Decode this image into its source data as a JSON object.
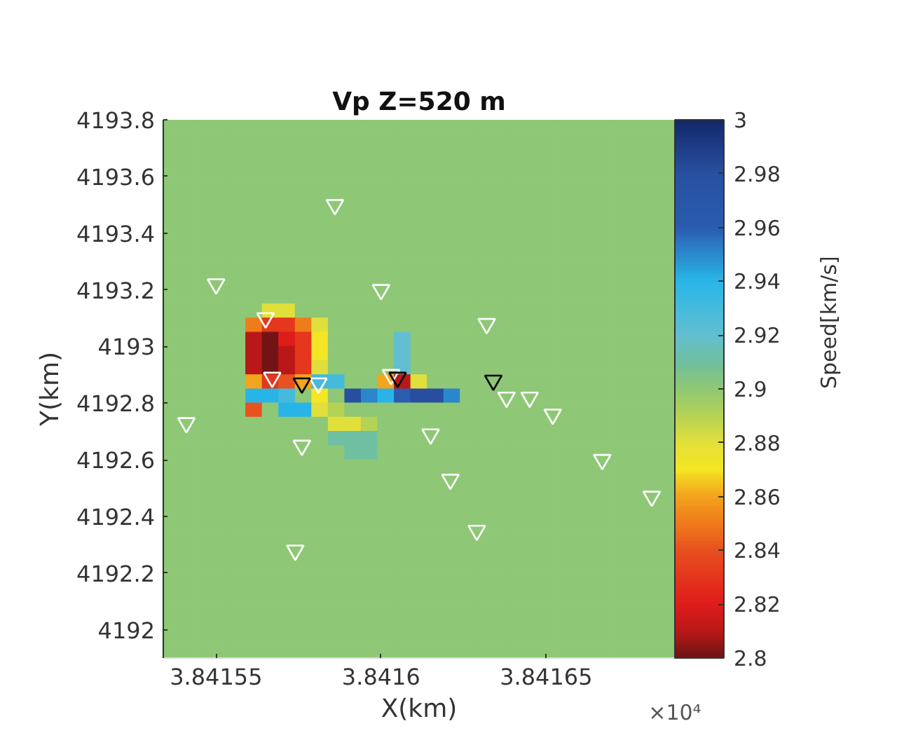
{
  "chart_data": {
    "type": "heatmap",
    "title": "Vp Z=520 m",
    "xlabel": "X(km)",
    "ylabel": "Y(km)",
    "clabel": "Speed[km/s]",
    "annotations": [
      "×10⁴"
    ],
    "x": [
      3.8415365,
      3.8415415,
      3.8415465,
      3.8415515,
      3.8415565,
      3.8415615,
      3.8415665,
      3.8415715,
      3.8415765,
      3.8415815,
      3.8415865,
      3.8415915,
      3.8415965,
      3.8416015,
      3.8416065,
      3.8416115,
      3.8416165,
      3.8416215,
      3.8416265,
      3.8416315,
      3.8416365,
      3.8416415,
      3.8416465,
      3.8416515,
      3.8416565,
      3.8416615,
      3.8416665,
      3.8416715,
      3.8416765,
      3.8416815,
      3.8416865
    ],
    "y": [
      4193.775,
      4193.725,
      4193.675,
      4193.625,
      4193.575,
      4193.525,
      4193.475,
      4193.425,
      4193.375,
      4193.325,
      4193.275,
      4193.225,
      4193.175,
      4193.125,
      4193.075,
      4193.025,
      4192.975,
      4192.925,
      4192.875,
      4192.825,
      4192.775,
      4192.725,
      4192.675,
      4192.625,
      4192.575,
      4192.525,
      4192.475,
      4192.425,
      4192.375,
      4192.325,
      4192.275,
      4192.225,
      4192.175,
      4192.125,
      4192.075,
      4192.025,
      4191.975,
      4191.925
    ],
    "cells": [
      [
        2.9,
        2.9,
        2.9,
        2.9,
        2.9,
        2.9,
        2.9,
        2.9,
        2.9,
        2.9,
        2.9,
        2.9,
        2.9,
        2.9,
        2.9,
        2.9,
        2.9,
        2.9,
        2.9,
        2.9,
        2.9,
        2.9,
        2.9,
        2.9,
        2.9,
        2.9,
        2.9,
        2.9,
        2.9,
        2.9,
        2.9
      ],
      [
        2.9,
        2.9,
        2.9,
        2.9,
        2.9,
        2.9,
        2.9,
        2.9,
        2.9,
        2.9,
        2.9,
        2.9,
        2.9,
        2.9,
        2.9,
        2.9,
        2.9,
        2.9,
        2.9,
        2.9,
        2.9,
        2.9,
        2.9,
        2.9,
        2.9,
        2.9,
        2.9,
        2.9,
        2.9,
        2.9,
        2.9
      ],
      [
        2.9,
        2.9,
        2.9,
        2.9,
        2.9,
        2.9,
        2.9,
        2.9,
        2.9,
        2.9,
        2.9,
        2.9,
        2.9,
        2.9,
        2.9,
        2.9,
        2.9,
        2.9,
        2.9,
        2.9,
        2.9,
        2.9,
        2.9,
        2.9,
        2.9,
        2.9,
        2.9,
        2.9,
        2.9,
        2.9,
        2.9
      ],
      [
        2.9,
        2.9,
        2.9,
        2.9,
        2.9,
        2.9,
        2.9,
        2.9,
        2.9,
        2.9,
        2.9,
        2.9,
        2.9,
        2.9,
        2.9,
        2.9,
        2.9,
        2.9,
        2.9,
        2.9,
        2.9,
        2.9,
        2.9,
        2.9,
        2.9,
        2.9,
        2.9,
        2.9,
        2.9,
        2.9,
        2.9
      ],
      [
        2.9,
        2.9,
        2.9,
        2.9,
        2.9,
        2.9,
        2.9,
        2.9,
        2.9,
        2.9,
        2.9,
        2.9,
        2.9,
        2.9,
        2.9,
        2.9,
        2.9,
        2.9,
        2.9,
        2.9,
        2.9,
        2.9,
        2.9,
        2.9,
        2.9,
        2.9,
        2.9,
        2.9,
        2.9,
        2.9,
        2.9
      ],
      [
        2.9,
        2.9,
        2.9,
        2.9,
        2.9,
        2.9,
        2.9,
        2.9,
        2.9,
        2.9,
        2.9,
        2.9,
        2.9,
        2.9,
        2.9,
        2.9,
        2.9,
        2.9,
        2.9,
        2.9,
        2.9,
        2.9,
        2.9,
        2.9,
        2.9,
        2.9,
        2.9,
        2.9,
        2.9,
        2.9,
        2.9
      ],
      [
        2.9,
        2.9,
        2.9,
        2.9,
        2.9,
        2.9,
        2.9,
        2.9,
        2.9,
        2.9,
        2.9,
        2.9,
        2.9,
        2.9,
        2.9,
        2.9,
        2.9,
        2.9,
        2.9,
        2.9,
        2.9,
        2.9,
        2.9,
        2.9,
        2.9,
        2.9,
        2.9,
        2.9,
        2.9,
        2.9,
        2.9
      ],
      [
        2.9,
        2.9,
        2.9,
        2.9,
        2.9,
        2.9,
        2.9,
        2.9,
        2.9,
        2.9,
        2.9,
        2.9,
        2.9,
        2.9,
        2.9,
        2.9,
        2.9,
        2.9,
        2.9,
        2.9,
        2.9,
        2.9,
        2.9,
        2.9,
        2.9,
        2.9,
        2.9,
        2.9,
        2.9,
        2.9,
        2.9
      ],
      [
        2.9,
        2.9,
        2.9,
        2.9,
        2.9,
        2.9,
        2.9,
        2.9,
        2.9,
        2.9,
        2.9,
        2.9,
        2.9,
        2.9,
        2.9,
        2.9,
        2.9,
        2.9,
        2.9,
        2.9,
        2.9,
        2.9,
        2.9,
        2.9,
        2.9,
        2.9,
        2.9,
        2.9,
        2.9,
        2.9,
        2.9
      ],
      [
        2.9,
        2.9,
        2.9,
        2.9,
        2.9,
        2.9,
        2.9,
        2.9,
        2.9,
        2.9,
        2.9,
        2.9,
        2.9,
        2.9,
        2.9,
        2.9,
        2.9,
        2.9,
        2.9,
        2.9,
        2.9,
        2.9,
        2.9,
        2.9,
        2.9,
        2.9,
        2.9,
        2.9,
        2.9,
        2.9,
        2.9
      ],
      [
        2.9,
        2.9,
        2.9,
        2.9,
        2.9,
        2.9,
        2.9,
        2.9,
        2.9,
        2.9,
        2.9,
        2.9,
        2.9,
        2.9,
        2.9,
        2.9,
        2.9,
        2.9,
        2.9,
        2.9,
        2.9,
        2.9,
        2.9,
        2.9,
        2.9,
        2.9,
        2.9,
        2.9,
        2.9,
        2.9,
        2.9
      ],
      [
        2.9,
        2.9,
        2.9,
        2.9,
        2.9,
        2.9,
        2.9,
        2.9,
        2.9,
        2.9,
        2.9,
        2.9,
        2.9,
        2.9,
        2.9,
        2.9,
        2.9,
        2.9,
        2.9,
        2.9,
        2.9,
        2.9,
        2.9,
        2.9,
        2.9,
        2.9,
        2.9,
        2.9,
        2.9,
        2.9,
        2.9
      ],
      [
        2.9,
        2.9,
        2.9,
        2.9,
        2.9,
        2.9,
        2.9,
        2.9,
        2.9,
        2.9,
        2.9,
        2.9,
        2.9,
        2.9,
        2.9,
        2.9,
        2.9,
        2.9,
        2.9,
        2.9,
        2.9,
        2.9,
        2.9,
        2.9,
        2.9,
        2.9,
        2.9,
        2.9,
        2.9,
        2.9,
        2.9
      ],
      [
        2.9,
        2.9,
        2.9,
        2.9,
        2.9,
        2.9,
        2.88,
        2.88,
        2.9,
        2.9,
        2.9,
        2.9,
        2.9,
        2.9,
        2.9,
        2.9,
        2.9,
        2.9,
        2.9,
        2.9,
        2.9,
        2.9,
        2.9,
        2.9,
        2.9,
        2.9,
        2.9,
        2.9,
        2.9,
        2.9,
        2.9
      ],
      [
        2.9,
        2.9,
        2.9,
        2.9,
        2.9,
        2.85,
        2.83,
        2.83,
        2.85,
        2.88,
        2.9,
        2.9,
        2.9,
        2.9,
        2.9,
        2.9,
        2.9,
        2.9,
        2.9,
        2.9,
        2.9,
        2.9,
        2.9,
        2.9,
        2.9,
        2.9,
        2.9,
        2.9,
        2.9,
        2.9,
        2.9
      ],
      [
        2.9,
        2.9,
        2.9,
        2.9,
        2.9,
        2.81,
        2.8,
        2.82,
        2.83,
        2.87,
        2.9,
        2.9,
        2.9,
        2.9,
        2.92,
        2.9,
        2.9,
        2.9,
        2.9,
        2.9,
        2.9,
        2.9,
        2.9,
        2.9,
        2.9,
        2.9,
        2.9,
        2.9,
        2.9,
        2.9,
        2.9
      ],
      [
        2.9,
        2.9,
        2.9,
        2.9,
        2.9,
        2.81,
        2.8,
        2.81,
        2.83,
        2.87,
        2.9,
        2.9,
        2.9,
        2.9,
        2.92,
        2.9,
        2.9,
        2.9,
        2.9,
        2.9,
        2.9,
        2.9,
        2.9,
        2.9,
        2.9,
        2.9,
        2.9,
        2.9,
        2.9,
        2.9,
        2.9
      ],
      [
        2.9,
        2.9,
        2.9,
        2.9,
        2.9,
        2.81,
        2.8,
        2.81,
        2.83,
        2.88,
        2.9,
        2.9,
        2.9,
        2.9,
        2.92,
        2.9,
        2.9,
        2.9,
        2.9,
        2.9,
        2.9,
        2.9,
        2.9,
        2.9,
        2.9,
        2.9,
        2.9,
        2.9,
        2.9,
        2.9,
        2.9
      ],
      [
        2.9,
        2.9,
        2.9,
        2.9,
        2.9,
        2.86,
        2.83,
        2.84,
        2.86,
        2.93,
        2.93,
        2.9,
        2.9,
        2.86,
        2.81,
        2.88,
        2.9,
        2.9,
        2.9,
        2.9,
        2.9,
        2.9,
        2.9,
        2.9,
        2.9,
        2.9,
        2.9,
        2.9,
        2.9,
        2.9,
        2.9
      ],
      [
        2.9,
        2.9,
        2.9,
        2.9,
        2.9,
        2.94,
        2.94,
        2.93,
        2.9,
        2.87,
        2.9,
        2.98,
        2.95,
        2.94,
        2.96,
        2.98,
        2.98,
        2.95,
        2.9,
        2.9,
        2.9,
        2.9,
        2.9,
        2.9,
        2.9,
        2.9,
        2.9,
        2.9,
        2.9,
        2.9,
        2.9
      ],
      [
        2.9,
        2.9,
        2.9,
        2.9,
        2.9,
        2.84,
        2.9,
        2.94,
        2.94,
        2.88,
        2.89,
        2.9,
        2.9,
        2.9,
        2.9,
        2.9,
        2.9,
        2.9,
        2.9,
        2.9,
        2.9,
        2.9,
        2.9,
        2.9,
        2.9,
        2.9,
        2.9,
        2.9,
        2.9,
        2.9,
        2.9
      ],
      [
        2.9,
        2.9,
        2.9,
        2.9,
        2.9,
        2.9,
        2.9,
        2.9,
        2.9,
        2.9,
        2.88,
        2.88,
        2.89,
        2.9,
        2.9,
        2.9,
        2.9,
        2.9,
        2.9,
        2.9,
        2.9,
        2.9,
        2.9,
        2.9,
        2.9,
        2.9,
        2.9,
        2.9,
        2.9,
        2.9,
        2.9
      ],
      [
        2.9,
        2.9,
        2.9,
        2.9,
        2.9,
        2.9,
        2.9,
        2.9,
        2.9,
        2.9,
        2.91,
        2.91,
        2.91,
        2.9,
        2.9,
        2.9,
        2.9,
        2.9,
        2.9,
        2.9,
        2.9,
        2.9,
        2.9,
        2.9,
        2.9,
        2.9,
        2.9,
        2.9,
        2.9,
        2.9,
        2.9
      ],
      [
        2.9,
        2.9,
        2.9,
        2.9,
        2.9,
        2.9,
        2.9,
        2.9,
        2.9,
        2.9,
        2.9,
        2.91,
        2.91,
        2.9,
        2.9,
        2.9,
        2.9,
        2.9,
        2.9,
        2.9,
        2.9,
        2.9,
        2.9,
        2.9,
        2.9,
        2.9,
        2.9,
        2.9,
        2.9,
        2.9,
        2.9
      ],
      [
        2.9,
        2.9,
        2.9,
        2.9,
        2.9,
        2.9,
        2.9,
        2.9,
        2.9,
        2.9,
        2.9,
        2.9,
        2.9,
        2.9,
        2.9,
        2.9,
        2.9,
        2.9,
        2.9,
        2.9,
        2.9,
        2.9,
        2.9,
        2.9,
        2.9,
        2.9,
        2.9,
        2.9,
        2.9,
        2.9,
        2.9
      ],
      [
        2.9,
        2.9,
        2.9,
        2.9,
        2.9,
        2.9,
        2.9,
        2.9,
        2.9,
        2.9,
        2.9,
        2.9,
        2.9,
        2.9,
        2.9,
        2.9,
        2.9,
        2.9,
        2.9,
        2.9,
        2.9,
        2.9,
        2.9,
        2.9,
        2.9,
        2.9,
        2.9,
        2.9,
        2.9,
        2.9,
        2.9
      ],
      [
        2.9,
        2.9,
        2.9,
        2.9,
        2.9,
        2.9,
        2.9,
        2.9,
        2.9,
        2.9,
        2.9,
        2.9,
        2.9,
        2.9,
        2.9,
        2.9,
        2.9,
        2.9,
        2.9,
        2.9,
        2.9,
        2.9,
        2.9,
        2.9,
        2.9,
        2.9,
        2.9,
        2.9,
        2.9,
        2.9,
        2.9
      ],
      [
        2.9,
        2.9,
        2.9,
        2.9,
        2.9,
        2.9,
        2.9,
        2.9,
        2.9,
        2.9,
        2.9,
        2.9,
        2.9,
        2.9,
        2.9,
        2.9,
        2.9,
        2.9,
        2.9,
        2.9,
        2.9,
        2.9,
        2.9,
        2.9,
        2.9,
        2.9,
        2.9,
        2.9,
        2.9,
        2.9,
        2.9
      ],
      [
        2.9,
        2.9,
        2.9,
        2.9,
        2.9,
        2.9,
        2.9,
        2.9,
        2.9,
        2.9,
        2.9,
        2.9,
        2.9,
        2.9,
        2.9,
        2.9,
        2.9,
        2.9,
        2.9,
        2.9,
        2.9,
        2.9,
        2.9,
        2.9,
        2.9,
        2.9,
        2.9,
        2.9,
        2.9,
        2.9,
        2.9
      ],
      [
        2.9,
        2.9,
        2.9,
        2.9,
        2.9,
        2.9,
        2.9,
        2.9,
        2.9,
        2.9,
        2.9,
        2.9,
        2.9,
        2.9,
        2.9,
        2.9,
        2.9,
        2.9,
        2.9,
        2.9,
        2.9,
        2.9,
        2.9,
        2.9,
        2.9,
        2.9,
        2.9,
        2.9,
        2.9,
        2.9,
        2.9
      ],
      [
        2.9,
        2.9,
        2.9,
        2.9,
        2.9,
        2.9,
        2.9,
        2.9,
        2.9,
        2.9,
        2.9,
        2.9,
        2.9,
        2.9,
        2.9,
        2.9,
        2.9,
        2.9,
        2.9,
        2.9,
        2.9,
        2.9,
        2.9,
        2.9,
        2.9,
        2.9,
        2.9,
        2.9,
        2.9,
        2.9,
        2.9
      ],
      [
        2.9,
        2.9,
        2.9,
        2.9,
        2.9,
        2.9,
        2.9,
        2.9,
        2.9,
        2.9,
        2.9,
        2.9,
        2.9,
        2.9,
        2.9,
        2.9,
        2.9,
        2.9,
        2.9,
        2.9,
        2.9,
        2.9,
        2.9,
        2.9,
        2.9,
        2.9,
        2.9,
        2.9,
        2.9,
        2.9,
        2.9
      ],
      [
        2.9,
        2.9,
        2.9,
        2.9,
        2.9,
        2.9,
        2.9,
        2.9,
        2.9,
        2.9,
        2.9,
        2.9,
        2.9,
        2.9,
        2.9,
        2.9,
        2.9,
        2.9,
        2.9,
        2.9,
        2.9,
        2.9,
        2.9,
        2.9,
        2.9,
        2.9,
        2.9,
        2.9,
        2.9,
        2.9,
        2.9
      ],
      [
        2.9,
        2.9,
        2.9,
        2.9,
        2.9,
        2.9,
        2.9,
        2.9,
        2.9,
        2.9,
        2.9,
        2.9,
        2.9,
        2.9,
        2.9,
        2.9,
        2.9,
        2.9,
        2.9,
        2.9,
        2.9,
        2.9,
        2.9,
        2.9,
        2.9,
        2.9,
        2.9,
        2.9,
        2.9,
        2.9,
        2.9
      ],
      [
        2.9,
        2.9,
        2.9,
        2.9,
        2.9,
        2.9,
        2.9,
        2.9,
        2.9,
        2.9,
        2.9,
        2.9,
        2.9,
        2.9,
        2.9,
        2.9,
        2.9,
        2.9,
        2.9,
        2.9,
        2.9,
        2.9,
        2.9,
        2.9,
        2.9,
        2.9,
        2.9,
        2.9,
        2.9,
        2.9,
        2.9
      ],
      [
        2.9,
        2.9,
        2.9,
        2.9,
        2.9,
        2.9,
        2.9,
        2.9,
        2.9,
        2.9,
        2.9,
        2.9,
        2.9,
        2.9,
        2.9,
        2.9,
        2.9,
        2.9,
        2.9,
        2.9,
        2.9,
        2.9,
        2.9,
        2.9,
        2.9,
        2.9,
        2.9,
        2.9,
        2.9,
        2.9,
        2.9
      ],
      [
        2.9,
        2.9,
        2.9,
        2.9,
        2.9,
        2.9,
        2.9,
        2.9,
        2.9,
        2.9,
        2.9,
        2.9,
        2.9,
        2.9,
        2.9,
        2.9,
        2.9,
        2.9,
        2.9,
        2.9,
        2.9,
        2.9,
        2.9,
        2.9,
        2.9,
        2.9,
        2.9,
        2.9,
        2.9,
        2.9,
        2.9
      ],
      [
        2.9,
        2.9,
        2.9,
        2.9,
        2.9,
        2.9,
        2.9,
        2.9,
        2.9,
        2.9,
        2.9,
        2.9,
        2.9,
        2.9,
        2.9,
        2.9,
        2.9,
        2.9,
        2.9,
        2.9,
        2.9,
        2.9,
        2.9,
        2.9,
        2.9,
        2.9,
        2.9,
        2.9,
        2.9,
        2.9,
        2.9
      ]
    ],
    "clim": [
      2.8,
      3
    ],
    "cticks": [
      2.8,
      2.82,
      2.84,
      2.86,
      2.88,
      2.9,
      2.92,
      2.94,
      2.96,
      2.98,
      3
    ],
    "xlim": [
      3.841534,
      3.841689
    ],
    "xticks": [
      3.84155,
      3.8416,
      3.84165
    ],
    "ylim": [
      4191.9,
      4193.8
    ],
    "yticks": [
      4192,
      4192.2,
      4192.4,
      4192.6,
      4192.8,
      4193,
      4193.2,
      4193.4,
      4193.6,
      4193.8
    ],
    "marker": "triangle",
    "series": [
      {
        "type": "scatter",
        "color": "#ffffff",
        "x": [
          3.841586,
          3.84155,
          3.8416,
          3.841632,
          3.841565,
          3.841567,
          3.841581,
          3.841603,
          3.841638,
          3.841645,
          3.841652,
          3.841541,
          3.841576,
          3.841615,
          3.841621,
          3.841667,
          3.841682,
          3.841629,
          3.841574
        ],
        "values": [
          4193.5,
          4193.22,
          4193.2,
          4193.08,
          4193.1,
          4192.89,
          4192.87,
          4192.9,
          4192.82,
          4192.82,
          4192.76,
          4192.73,
          4192.65,
          4192.69,
          4192.53,
          4192.6,
          4192.47,
          4192.35,
          4192.28
        ]
      },
      {
        "type": "scatter",
        "color": "#000000",
        "x": [
          3.841576,
          3.841605,
          3.841634
        ],
        "values": [
          4192.87,
          4192.89,
          4192.88
        ]
      }
    ]
  }
}
